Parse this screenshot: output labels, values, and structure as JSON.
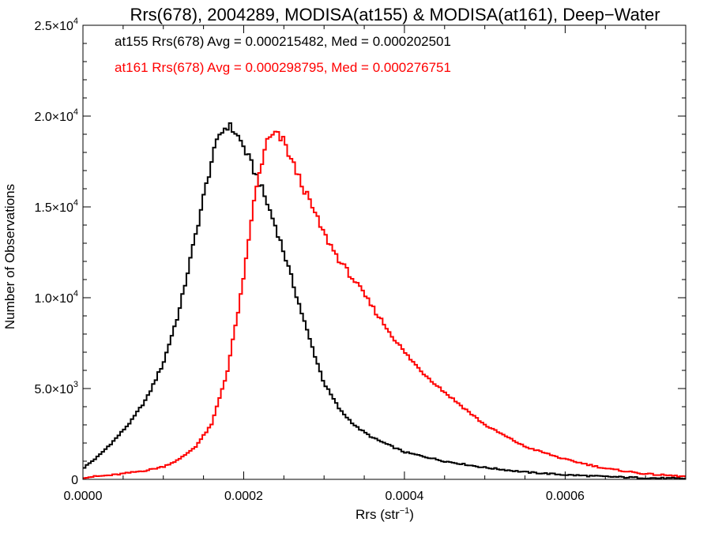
{
  "chart_data": {
    "type": "histogram",
    "title": "Rrs(678), 2004289, MODISA(at155) & MODISA(at161), Deep−Water",
    "xlabel_base": "Rrs (str",
    "xlabel_sup": "−1",
    "xlabel_close": ")",
    "ylabel": "Number of Observations",
    "xlim": [
      0.0,
      0.00075
    ],
    "ylim": [
      0,
      25000
    ],
    "grid": false,
    "x_ticks": [
      {
        "value": 0.0,
        "label": "0.0000"
      },
      {
        "value": 0.0002,
        "label": "0.0002"
      },
      {
        "value": 0.0004,
        "label": "0.0004"
      },
      {
        "value": 0.0006,
        "label": "0.0006"
      }
    ],
    "y_ticks": [
      {
        "value": 0,
        "mantissa": "0",
        "exp": ""
      },
      {
        "value": 5000,
        "mantissa": "5.0×10",
        "exp": "3"
      },
      {
        "value": 10000,
        "mantissa": "1.0×10",
        "exp": "4"
      },
      {
        "value": 15000,
        "mantissa": "1.5×10",
        "exp": "4"
      },
      {
        "value": 20000,
        "mantissa": "2.0×10",
        "exp": "4"
      },
      {
        "value": 25000,
        "mantissa": "2.5×10",
        "exp": "4"
      }
    ],
    "annotations": [
      {
        "text": "at155 Rrs(678) Avg = 0.000215482, Med = 0.000202501",
        "color": "#000000"
      },
      {
        "text": "at161 Rrs(678) Avg = 0.000298795, Med = 0.000276751",
        "color": "#ff0000"
      }
    ],
    "series": [
      {
        "name": "at155",
        "color": "#000000",
        "x": [
          0.0,
          2e-05,
          4e-05,
          6e-05,
          8e-05,
          0.0001,
          0.00012,
          0.00014,
          0.00015,
          0.00016,
          0.00017,
          0.00018,
          0.00019,
          0.0002,
          0.00021,
          0.00022,
          0.00023,
          0.00024,
          0.00025,
          0.00026,
          0.00028,
          0.0003,
          0.00032,
          0.00034,
          0.00036,
          0.00038,
          0.0004,
          0.00045,
          0.0005,
          0.00055,
          0.0006,
          0.00065,
          0.0007,
          0.00075
        ],
        "y": [
          600,
          1300,
          2200,
          3200,
          4500,
          6400,
          9300,
          13400,
          15500,
          17500,
          19000,
          19500,
          19100,
          18300,
          17300,
          16300,
          15100,
          13900,
          12500,
          11000,
          8000,
          5300,
          3800,
          2900,
          2300,
          1900,
          1500,
          1000,
          650,
          400,
          250,
          150,
          80,
          40
        ]
      },
      {
        "name": "at161",
        "color": "#ff0000",
        "x": [
          0.0,
          4e-05,
          8e-05,
          0.0001,
          0.00012,
          0.00014,
          0.00016,
          0.00018,
          0.0002,
          0.00021,
          0.00022,
          0.00023,
          0.00024,
          0.00025,
          0.00026,
          0.00028,
          0.0003,
          0.00032,
          0.00034,
          0.00036,
          0.00038,
          0.0004,
          0.00042,
          0.00045,
          0.0005,
          0.00055,
          0.0006,
          0.00065,
          0.0007,
          0.00075
        ],
        "y": [
          100,
          250,
          500,
          700,
          1100,
          1800,
          3000,
          6000,
          11000,
          14500,
          17000,
          18700,
          19000,
          18600,
          17500,
          15500,
          13500,
          12000,
          10800,
          9500,
          8200,
          7000,
          6000,
          4800,
          3000,
          1800,
          1100,
          600,
          300,
          150
        ]
      }
    ]
  }
}
